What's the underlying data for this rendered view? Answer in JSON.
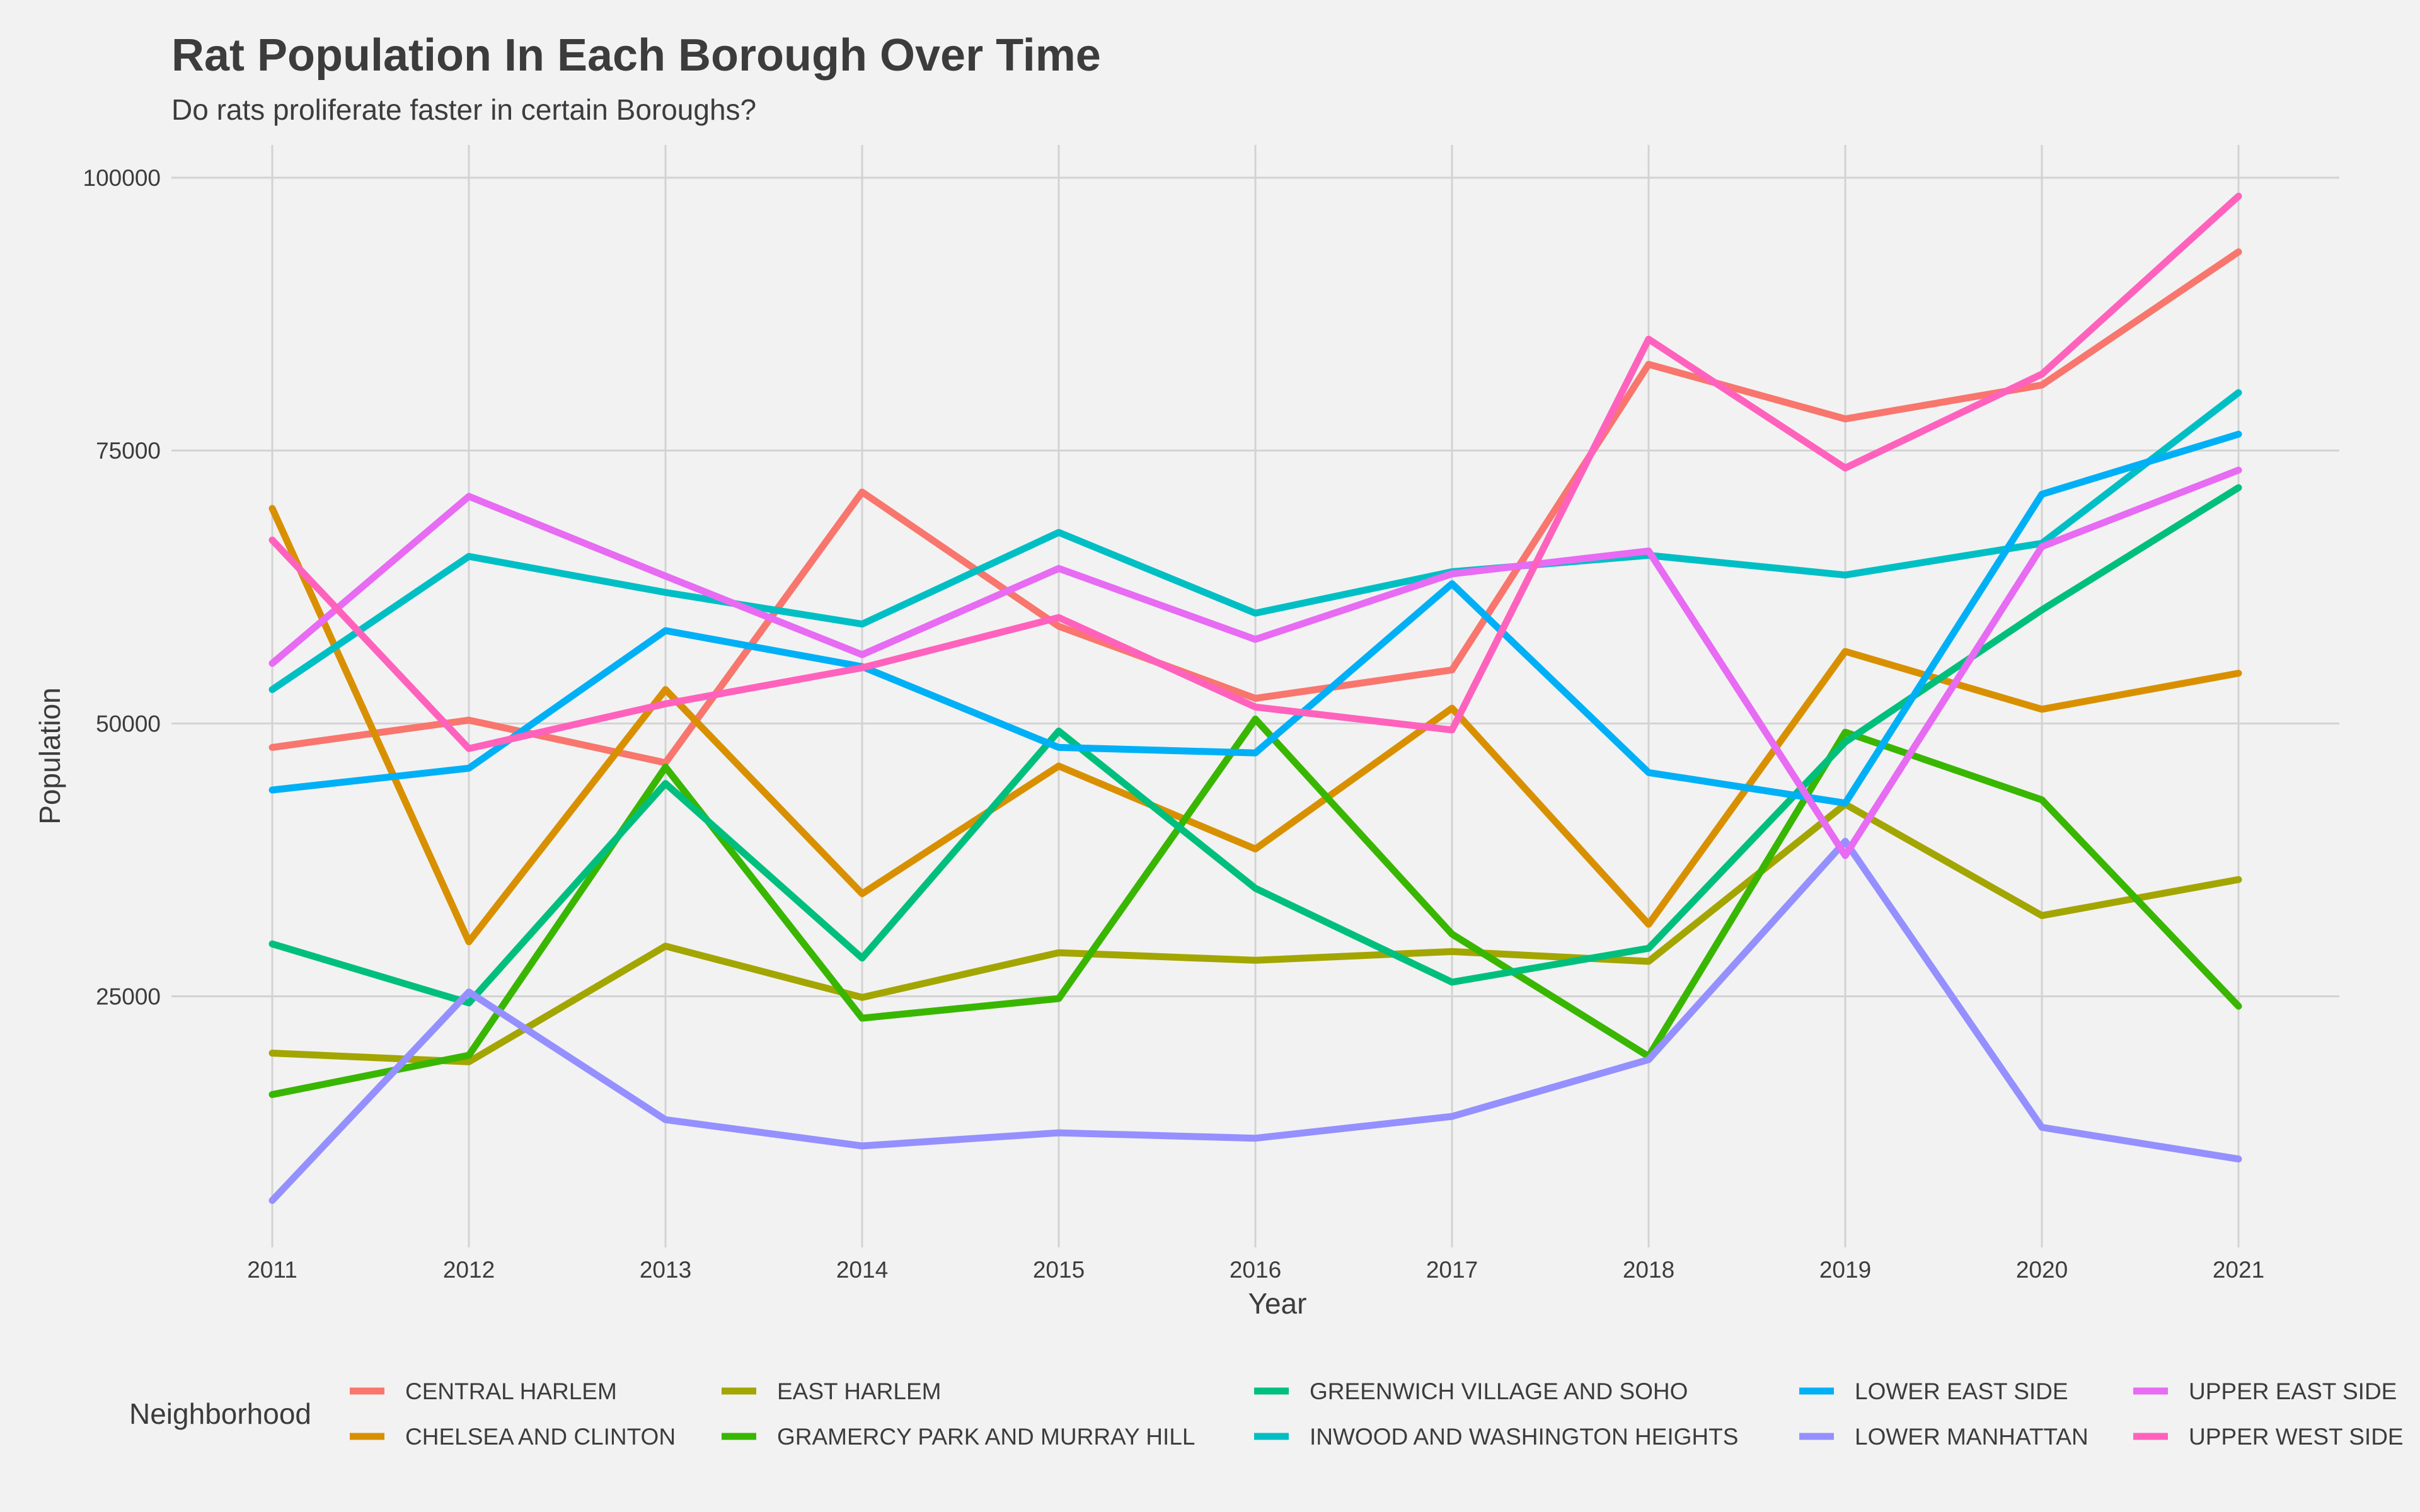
{
  "chart_data": {
    "type": "line",
    "title": "Rat Population In Each Borough Over Time",
    "subtitle": "Do rats proliferate faster in certain Boroughs?",
    "xlabel": "Year",
    "ylabel": "Population",
    "x": [
      2011,
      2012,
      2013,
      2014,
      2015,
      2016,
      2017,
      2018,
      2019,
      2020,
      2021
    ],
    "ylim": [
      2000,
      103000
    ],
    "y_ticks": [
      25000,
      50000,
      75000,
      100000
    ],
    "grid": true,
    "legend_title": "Neighborhood",
    "legend_position": "bottom",
    "series": [
      {
        "name": "CENTRAL HARLEM",
        "color": "#F8766D",
        "values": [
          47800,
          50300,
          46400,
          71200,
          58900,
          52300,
          54900,
          82900,
          77900,
          81000,
          93200
        ]
      },
      {
        "name": "CHELSEA AND CLINTON",
        "color": "#D89000",
        "values": [
          69700,
          30000,
          53100,
          34400,
          46100,
          38500,
          51400,
          31600,
          56600,
          51300,
          54600
        ]
      },
      {
        "name": "EAST HARLEM",
        "color": "#A3A500",
        "values": [
          19800,
          19000,
          29600,
          24900,
          29000,
          28300,
          29100,
          28200,
          42600,
          32400,
          35700
        ]
      },
      {
        "name": "GRAMERCY PARK AND MURRAY HILL",
        "color": "#39B600",
        "values": [
          16000,
          19600,
          46000,
          23000,
          24800,
          50400,
          30700,
          19500,
          49200,
          43000,
          24100
        ]
      },
      {
        "name": "GREENWICH VILLAGE AND SOHO",
        "color": "#00BF7D",
        "values": [
          29800,
          24400,
          44500,
          28500,
          49300,
          34900,
          26300,
          29400,
          48300,
          60400,
          71600
        ]
      },
      {
        "name": "INWOOD AND WASHINGTON HEIGHTS",
        "color": "#00BFC4",
        "values": [
          53100,
          65300,
          62000,
          59100,
          67500,
          60100,
          63900,
          65400,
          63600,
          66500,
          80300
        ]
      },
      {
        "name": "LOWER EAST SIDE",
        "color": "#00B0F6",
        "values": [
          43900,
          45900,
          58500,
          55200,
          47800,
          47300,
          62800,
          45500,
          42700,
          71000,
          76500
        ]
      },
      {
        "name": "LOWER MANHATTAN",
        "color": "#9590FF",
        "values": [
          6300,
          25400,
          13700,
          11300,
          12500,
          12000,
          14000,
          19200,
          39200,
          13000,
          10100
        ]
      },
      {
        "name": "UPPER EAST SIDE",
        "color": "#E76BF3",
        "values": [
          55500,
          70800,
          63500,
          56300,
          64200,
          57700,
          63700,
          65800,
          37900,
          66200,
          73200
        ]
      },
      {
        "name": "UPPER WEST SIDE",
        "color": "#FF62BC",
        "values": [
          66800,
          47700,
          51800,
          55100,
          59700,
          51500,
          49400,
          85200,
          73400,
          82000,
          98300
        ]
      }
    ]
  }
}
